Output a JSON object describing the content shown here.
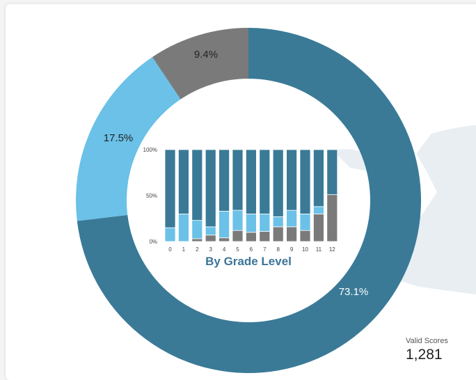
{
  "colors": {
    "dark_blue": "#3a7a97",
    "light_blue": "#6bc1e7",
    "gray": "#7a7a7a",
    "map_bg": "#e9eef2",
    "title_blue": "#3b7597"
  },
  "chart_data": [
    {
      "type": "pie",
      "donut": true,
      "categories": [
        "dark-blue",
        "light-blue",
        "gray"
      ],
      "values": [
        73.1,
        17.5,
        9.4
      ],
      "labels": [
        "73.1%",
        "17.5%",
        "9.4%"
      ]
    },
    {
      "type": "bar",
      "stacked": true,
      "normalized": true,
      "title": "By Grade Level",
      "categories": [
        "0",
        "1",
        "2",
        "3",
        "4",
        "5",
        "6",
        "7",
        "8",
        "9",
        "10",
        "11",
        "12"
      ],
      "yticks": [
        "100%",
        "50%",
        "0%"
      ],
      "ylim": [
        0,
        100
      ],
      "series": [
        {
          "color": "gray",
          "values": [
            0,
            0,
            3,
            7,
            4,
            12,
            10,
            11,
            16,
            16,
            12,
            30,
            51
          ]
        },
        {
          "color": "light_blue",
          "values": [
            15,
            30,
            20,
            9,
            29,
            22,
            20,
            19,
            11,
            18,
            18,
            8,
            0
          ]
        },
        {
          "color": "dark_blue",
          "values": [
            85,
            70,
            77,
            84,
            67,
            66,
            70,
            70,
            73,
            66,
            70,
            62,
            49
          ]
        }
      ]
    }
  ],
  "summary": {
    "valid_label": "Valid Scores",
    "valid_value": "1,281"
  }
}
